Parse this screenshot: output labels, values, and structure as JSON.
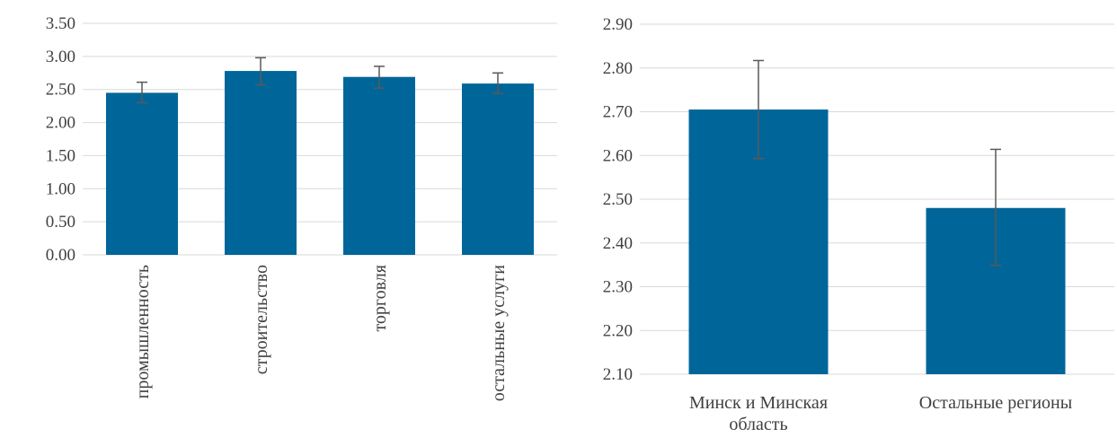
{
  "chart_data": [
    {
      "type": "bar",
      "title": "",
      "xlabel": "",
      "ylabel": "",
      "ylim": [
        0,
        3.5
      ],
      "y_ticks": [
        "0.00",
        "0.50",
        "1.00",
        "1.50",
        "2.00",
        "2.50",
        "3.00",
        "3.50"
      ],
      "y_tick_values": [
        0,
        0.5,
        1.0,
        1.5,
        2.0,
        2.5,
        3.0,
        3.5
      ],
      "categories": [
        "промышленность",
        "строительство",
        "торговля",
        "остальные услуги"
      ],
      "values": [
        2.45,
        2.78,
        2.69,
        2.59
      ],
      "error_high": [
        2.61,
        2.98,
        2.85,
        2.75
      ],
      "error_low": [
        2.3,
        2.57,
        2.52,
        2.44
      ],
      "category_label_orientation": "vertical",
      "grid": true,
      "bar_color": "#006699",
      "errorbar_color": "#595959"
    },
    {
      "type": "bar",
      "title": "",
      "xlabel": "",
      "ylabel": "",
      "ylim": [
        2.1,
        2.9
      ],
      "y_ticks": [
        "2.10",
        "2.20",
        "2.30",
        "2.40",
        "2.50",
        "2.60",
        "2.70",
        "2.80",
        "2.90"
      ],
      "y_tick_values": [
        2.1,
        2.2,
        2.3,
        2.4,
        2.5,
        2.6,
        2.7,
        2.8,
        2.9
      ],
      "categories": [
        [
          "Минск и Минская",
          "область"
        ],
        [
          "Остальные регионы"
        ]
      ],
      "values": [
        2.705,
        2.48
      ],
      "error_high": [
        2.817,
        2.614
      ],
      "error_low": [
        2.593,
        2.349
      ],
      "category_label_orientation": "horizontal",
      "grid": true,
      "bar_color": "#006699",
      "errorbar_color": "#595959"
    }
  ]
}
